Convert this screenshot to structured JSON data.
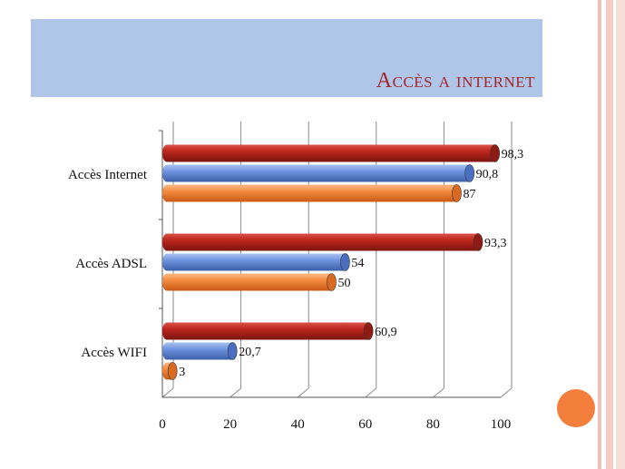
{
  "slide": {
    "title": "Accès a internet",
    "colors": {
      "band": "#b0c6e8",
      "title": "#a4262b",
      "accent_dot": "#f47e3c"
    }
  },
  "chart_data": {
    "type": "bar",
    "orientation": "horizontal",
    "categories": [
      "Accès Internet",
      "Accès ADSL",
      "Accès WIFI"
    ],
    "series": [
      {
        "values": [
          98.3,
          93.3,
          60.9
        ],
        "labels": [
          "98,3",
          "93,3",
          "60,9"
        ],
        "color": "#b8231e"
      },
      {
        "values": [
          90.8,
          54,
          20.7
        ],
        "labels": [
          "90,8",
          "54",
          "20,7"
        ],
        "color": "#5f87d6"
      },
      {
        "values": [
          87,
          50,
          3
        ],
        "labels": [
          "87",
          "50",
          "3"
        ],
        "color": "#f27d32"
      }
    ],
    "xlim": [
      0,
      100
    ],
    "xticks": [
      "0",
      "20",
      "40",
      "60",
      "80",
      "100"
    ],
    "grid": true,
    "legend": "none",
    "style": "3d-cylinder"
  }
}
